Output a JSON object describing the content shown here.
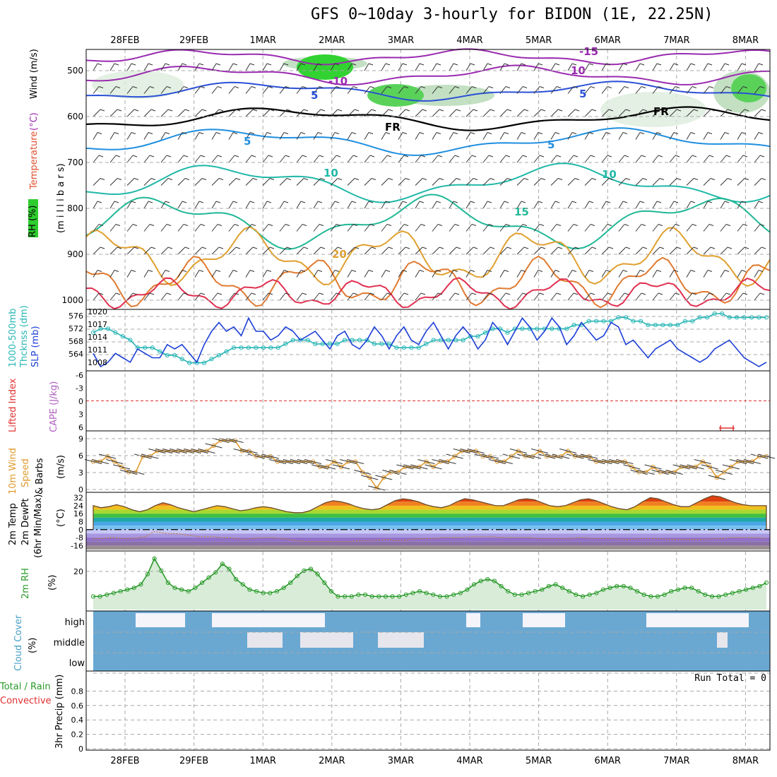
{
  "title": "GFS 0~10day 3-hourly for BIDON (1E, 22.25N)",
  "dates": [
    "28FEB",
    "29FEB",
    "1MAR",
    "2MAR",
    "3MAR",
    "4MAR",
    "5MAR",
    "6MAR",
    "7MAR",
    "8MAR"
  ],
  "colors": {
    "grid": "#a8a8a8",
    "blue": "#1c3fd6",
    "cyan": "#29b6b6",
    "orange": "#e09a30",
    "green": "#2a9a2a",
    "cloud": "#6aa8d2",
    "red": "#e03030"
  },
  "panels": {
    "upper": {
      "labels": {
        "rh": "RH (%)",
        "temperature": "Temperature",
        "unit": "(°C)",
        "wind": "Wind (m/s)",
        "pressure": "(m i l l i b a r s)"
      },
      "yticks": [
        "500",
        "600",
        "700",
        "800",
        "900",
        "1000"
      ],
      "contour_labels": [
        "-15",
        "-10",
        "10",
        "5",
        "5",
        "FR",
        "FR",
        "5",
        "5",
        "10",
        "10",
        "15",
        "20"
      ]
    },
    "slp": {
      "label_a": "1000-500mb",
      "label_b": "Thcknss (dm)",
      "label_c": "SLP (mb)",
      "left_ticks": [
        "576",
        "572",
        "568",
        "564"
      ],
      "right_ticks": [
        "1020",
        "1017",
        "1014",
        "1011",
        "1008"
      ]
    },
    "cape": {
      "label_a": "Lifted Index",
      "label_b": "CAPE (J/kg)",
      "ticks": [
        "-6",
        "-3",
        "0",
        "3",
        "6"
      ]
    },
    "wind": {
      "label_a": "10m Wind",
      "label_b": "Speed",
      "label_c": "& Barbs",
      "label_d": "(m/s)",
      "ticks": [
        "9",
        "6",
        "3",
        "0"
      ]
    },
    "temp": {
      "label_a": "2m Temp",
      "label_b": "2m DewPt",
      "label_c": "(6hr Min/Max)",
      "label_d": "(°C)",
      "ticks": [
        "32",
        "24",
        "16",
        "8",
        "0",
        "-8",
        "-16"
      ]
    },
    "rh": {
      "label_a": "2m RH",
      "label_b": "(%)",
      "ticks": [
        "20"
      ]
    },
    "cloud": {
      "label_a": "Cloud Cover",
      "label_b": "(%)",
      "levels": [
        "high",
        "middle",
        "low"
      ]
    },
    "precip": {
      "label_a": "Total / Rain",
      "label_b": "Convective",
      "label_c": "3hr Precip (mm)",
      "ticks": [
        "0.8",
        "0.6",
        "0.4",
        "0.2",
        "0"
      ],
      "run_total": "Run Total = 0"
    }
  },
  "chart_data": [
    {
      "type": "line",
      "title": "1000-500mb Thickness / SLP",
      "series": [
        {
          "name": "SLP (mb)",
          "ylim": [
            1008,
            1020
          ],
          "values": [
            1011,
            1008,
            1009,
            1011,
            1010,
            1009,
            1012,
            1011,
            1010,
            1010,
            1013,
            1012,
            1013,
            1011,
            1009,
            1013,
            1016,
            1018,
            1016,
            1017,
            1015,
            1019,
            1016,
            1016,
            1014,
            1015,
            1017,
            1016,
            1014,
            1015,
            1016,
            1014,
            1012,
            1015,
            1016,
            1013,
            1012,
            1014,
            1017,
            1015,
            1012,
            1015,
            1017,
            1014,
            1013,
            1016,
            1018,
            1015,
            1012,
            1015,
            1017,
            1015,
            1012,
            1014,
            1018,
            1016,
            1013,
            1016,
            1019,
            1017,
            1014,
            1016,
            1019,
            1017,
            1013,
            1015,
            1018,
            1016,
            1014,
            1015,
            1018,
            1017,
            1013,
            1014,
            1012,
            1010,
            1012,
            1013,
            1014,
            1012,
            1011,
            1010,
            1009,
            1010,
            1012,
            1013,
            1014,
            1012,
            1010,
            1009,
            1008,
            1009
          ]
        },
        {
          "name": "1000-500mb Thickness (dm)",
          "ylim": [
            563,
            577
          ],
          "values": [
            572,
            573,
            573,
            572,
            571,
            570,
            568,
            568,
            568,
            567,
            566,
            566,
            565,
            564,
            564,
            564,
            565,
            566,
            567,
            568,
            568,
            568,
            568,
            568,
            568,
            568,
            569,
            570,
            570,
            570,
            569,
            569,
            569,
            569,
            570,
            570,
            570,
            570,
            569,
            569,
            569,
            568,
            568,
            568,
            568,
            569,
            570,
            570,
            570,
            570,
            570,
            571,
            571,
            572,
            573,
            573,
            572,
            573,
            573,
            573,
            573,
            573,
            573,
            573,
            573,
            574,
            574,
            575,
            575,
            575,
            575,
            576,
            576,
            575,
            575,
            574,
            574,
            574,
            574,
            574,
            575,
            575,
            576,
            576,
            577,
            577,
            576,
            576,
            576,
            576,
            576,
            576
          ]
        }
      ]
    },
    {
      "type": "line",
      "title": "10m Wind Speed (m/s)",
      "ylim": [
        0,
        10
      ],
      "values": [
        5,
        5,
        6,
        5,
        4,
        3,
        3,
        6,
        6,
        7,
        7,
        7,
        7,
        7,
        7,
        7,
        7,
        8,
        9,
        9,
        9,
        7,
        7,
        6,
        6,
        6,
        5,
        5,
        5,
        5,
        5,
        5,
        4,
        4,
        5,
        4,
        5,
        5,
        3,
        2,
        0,
        2,
        3,
        3,
        4,
        4,
        4,
        5,
        4,
        5,
        5,
        6,
        7,
        7,
        7,
        6,
        6,
        5,
        5,
        6,
        7,
        6,
        6,
        7,
        6,
        6,
        6,
        7,
        6,
        6,
        6,
        5,
        5,
        5,
        5,
        5,
        4,
        3,
        3,
        4,
        3,
        3,
        3,
        4,
        4,
        4,
        5,
        4,
        2,
        3,
        4,
        5,
        5,
        5,
        6,
        6
      ]
    },
    {
      "type": "area",
      "title": "2m Temp / DewPt (°C)",
      "ylim": [
        -20,
        36
      ],
      "series": [
        {
          "name": "2m Temp",
          "values": [
            24,
            22,
            23,
            25,
            23,
            20,
            18,
            20,
            24,
            27,
            25,
            22,
            20,
            18,
            20,
            22,
            24,
            23,
            21,
            19,
            20,
            22,
            23,
            22,
            20,
            18,
            17,
            17,
            19,
            23,
            27,
            29,
            28,
            26,
            23,
            21,
            20,
            21,
            25,
            29,
            31,
            30,
            28,
            25,
            23,
            22,
            24,
            28,
            31,
            30,
            28,
            26,
            24,
            24,
            27,
            30,
            31,
            30,
            27,
            24,
            23,
            24,
            27,
            30,
            31,
            29,
            26,
            23,
            21,
            20,
            23,
            28,
            32,
            31,
            28,
            25,
            23,
            23,
            27,
            31,
            34,
            33,
            30,
            27,
            25,
            24,
            24,
            24
          ]
        },
        {
          "name": "2m DewPt",
          "values": [
            -9,
            -9,
            -8,
            -8,
            -9,
            -9,
            -8,
            -7,
            -2,
            -3,
            -4,
            -4,
            -5,
            -6,
            -7,
            -7,
            -7,
            -8,
            -8,
            -9,
            -10,
            -9,
            -8,
            -8,
            -8,
            -9,
            -10,
            -11,
            -12,
            -12,
            -12,
            -12,
            -12,
            -12,
            -12,
            -11,
            -11,
            -11,
            -10,
            -10,
            -11,
            -11,
            -10,
            -9,
            -9,
            -9,
            -8,
            -8,
            -8,
            -8,
            -7,
            -7,
            -7,
            -7,
            -8,
            -8,
            -8,
            -8,
            -8,
            -9,
            -9,
            -9,
            -9,
            -9,
            -8,
            -8,
            -9,
            -9,
            -9,
            -9,
            -10,
            -10,
            -9,
            -9,
            -9,
            -9,
            -10,
            -10,
            -10,
            -10,
            -10,
            -10,
            -9,
            -9,
            -8,
            -8,
            -8,
            -8,
            -8,
            -9
          ]
        }
      ]
    },
    {
      "type": "area",
      "title": "2m RH (%)",
      "ylim": [
        0,
        30
      ],
      "values": [
        6,
        6,
        7,
        8,
        9,
        10,
        11,
        13,
        19,
        28,
        21,
        14,
        11,
        10,
        9,
        11,
        14,
        17,
        20,
        25,
        22,
        16,
        13,
        10,
        9,
        8,
        8,
        9,
        11,
        14,
        18,
        21,
        22,
        19,
        14,
        9,
        6,
        6,
        6,
        7,
        7,
        6,
        6,
        6,
        6,
        6,
        7,
        8,
        9,
        8,
        7,
        6,
        6,
        7,
        8,
        10,
        13,
        15,
        16,
        15,
        12,
        9,
        7,
        7,
        8,
        9,
        10,
        12,
        13,
        11,
        9,
        7,
        6,
        7,
        8,
        10,
        11,
        12,
        12,
        11,
        9,
        7,
        6,
        6,
        7,
        9,
        10,
        11,
        11,
        9,
        7,
        6,
        6,
        7,
        8,
        9,
        10,
        11,
        12,
        14
      ]
    },
    {
      "type": "heatmap",
      "title": "Cloud Cover (%)",
      "categories": [
        "high",
        "middle",
        "low"
      ]
    },
    {
      "type": "bar",
      "title": "3hr Precip (mm)",
      "ylim": [
        0,
        1
      ],
      "values": [],
      "run_total": 0
    }
  ]
}
